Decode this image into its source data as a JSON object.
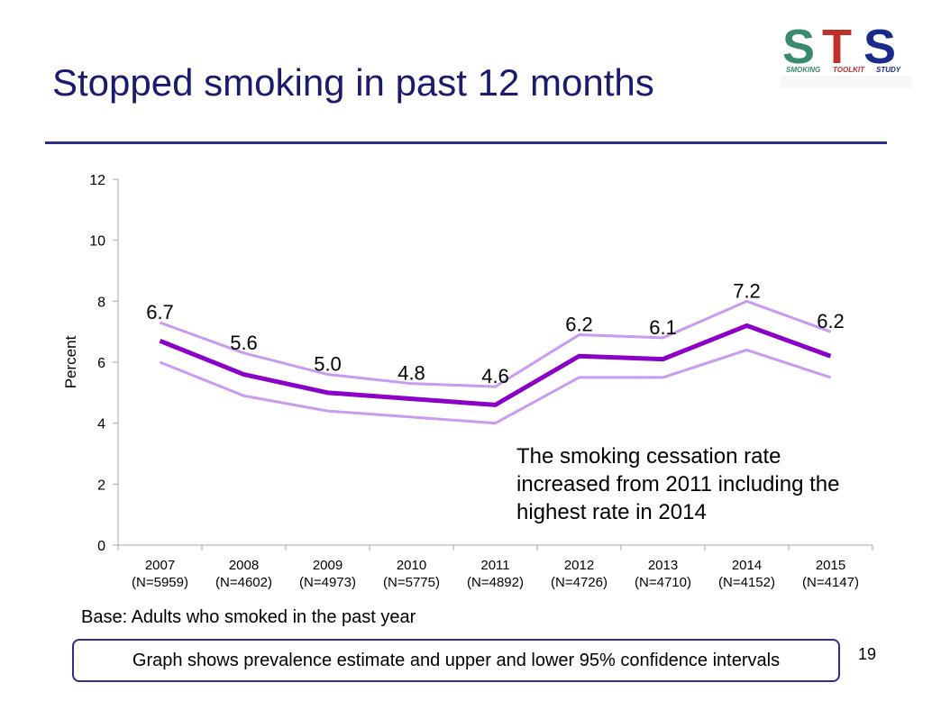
{
  "slide": {
    "title": "Stopped smoking in past 12 months",
    "base_note": "Base: Adults who smoked in the past year",
    "box_note": "Graph shows prevalence estimate and upper and lower 95% confidence intervals",
    "page_number": "19",
    "annotation": "The smoking cessation rate increased from 2011 including the highest rate in 2014"
  },
  "logo": {
    "letters": "STS",
    "words": [
      "SMOKING",
      "TOOLKIT",
      "STUDY"
    ],
    "colors": {
      "s1": "#3a8a6e",
      "t": "#c0302a",
      "s2": "#1a2a8a"
    }
  },
  "colors": {
    "title": "#1a1a6e",
    "rule": "#2e2e8a",
    "estimate_line": "#8b00c9",
    "ci_line": "#c89af0"
  },
  "chart_data": {
    "type": "line",
    "ylabel": "Percent",
    "xlabel": "",
    "ylim": [
      0,
      12
    ],
    "yticks": [
      0,
      2,
      4,
      6,
      8,
      10,
      12
    ],
    "categories": [
      [
        "2007",
        "(N=5959)"
      ],
      [
        "2008",
        "(N=4602)"
      ],
      [
        "2009",
        "(N=4973)"
      ],
      [
        "2010",
        "(N=5775)"
      ],
      [
        "2011",
        "(N=4892)"
      ],
      [
        "2012",
        "(N=4726)"
      ],
      [
        "2013",
        "(N=4710)"
      ],
      [
        "2014",
        "(N=4152)"
      ],
      [
        "2015",
        "(N=4147)"
      ]
    ],
    "series": [
      {
        "role": "upper",
        "values": [
          7.3,
          6.3,
          5.6,
          5.3,
          5.2,
          6.9,
          6.8,
          8.0,
          7.0
        ]
      },
      {
        "role": "estimate",
        "values": [
          6.7,
          5.6,
          5.0,
          4.8,
          4.6,
          6.2,
          6.1,
          7.2,
          6.2
        ]
      },
      {
        "role": "lower",
        "values": [
          6.0,
          4.9,
          4.4,
          4.2,
          4.0,
          5.5,
          5.5,
          6.4,
          5.5
        ]
      }
    ],
    "data_labels": [
      "6.7",
      "5.6",
      "5.0",
      "4.8",
      "4.6",
      "6.2",
      "6.1",
      "7.2",
      "6.2"
    ],
    "grid": false
  }
}
